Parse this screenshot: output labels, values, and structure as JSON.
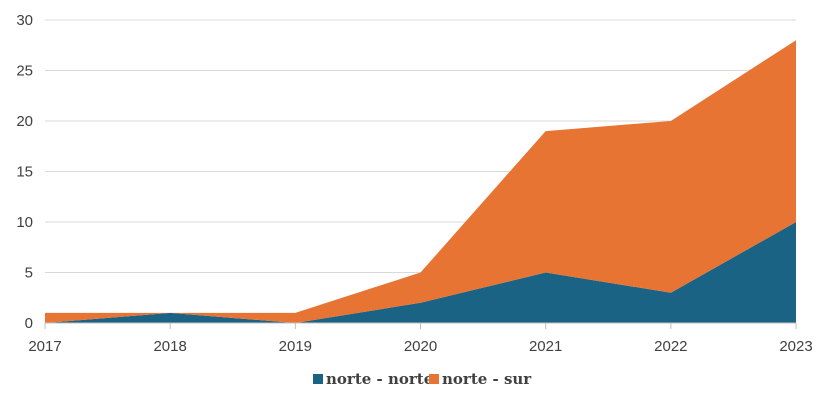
{
  "chart_data": {
    "type": "area",
    "stacked": true,
    "x": [
      "2017",
      "2018",
      "2019",
      "2020",
      "2021",
      "2022",
      "2023"
    ],
    "series": [
      {
        "name": "norte - norte",
        "values": [
          0,
          1,
          0,
          2,
          5,
          3,
          10
        ],
        "color": "#1a6384"
      },
      {
        "name": "norte - sur",
        "values": [
          1,
          0,
          1,
          3,
          14,
          17,
          18
        ],
        "color": "#e87433"
      }
    ],
    "ylim": [
      0,
      30
    ],
    "yticks": [
      "0",
      "5",
      "10",
      "15",
      "20",
      "25",
      "30"
    ],
    "grid": true,
    "legend": "bottom",
    "title": "",
    "xlabel": "",
    "ylabel": ""
  }
}
